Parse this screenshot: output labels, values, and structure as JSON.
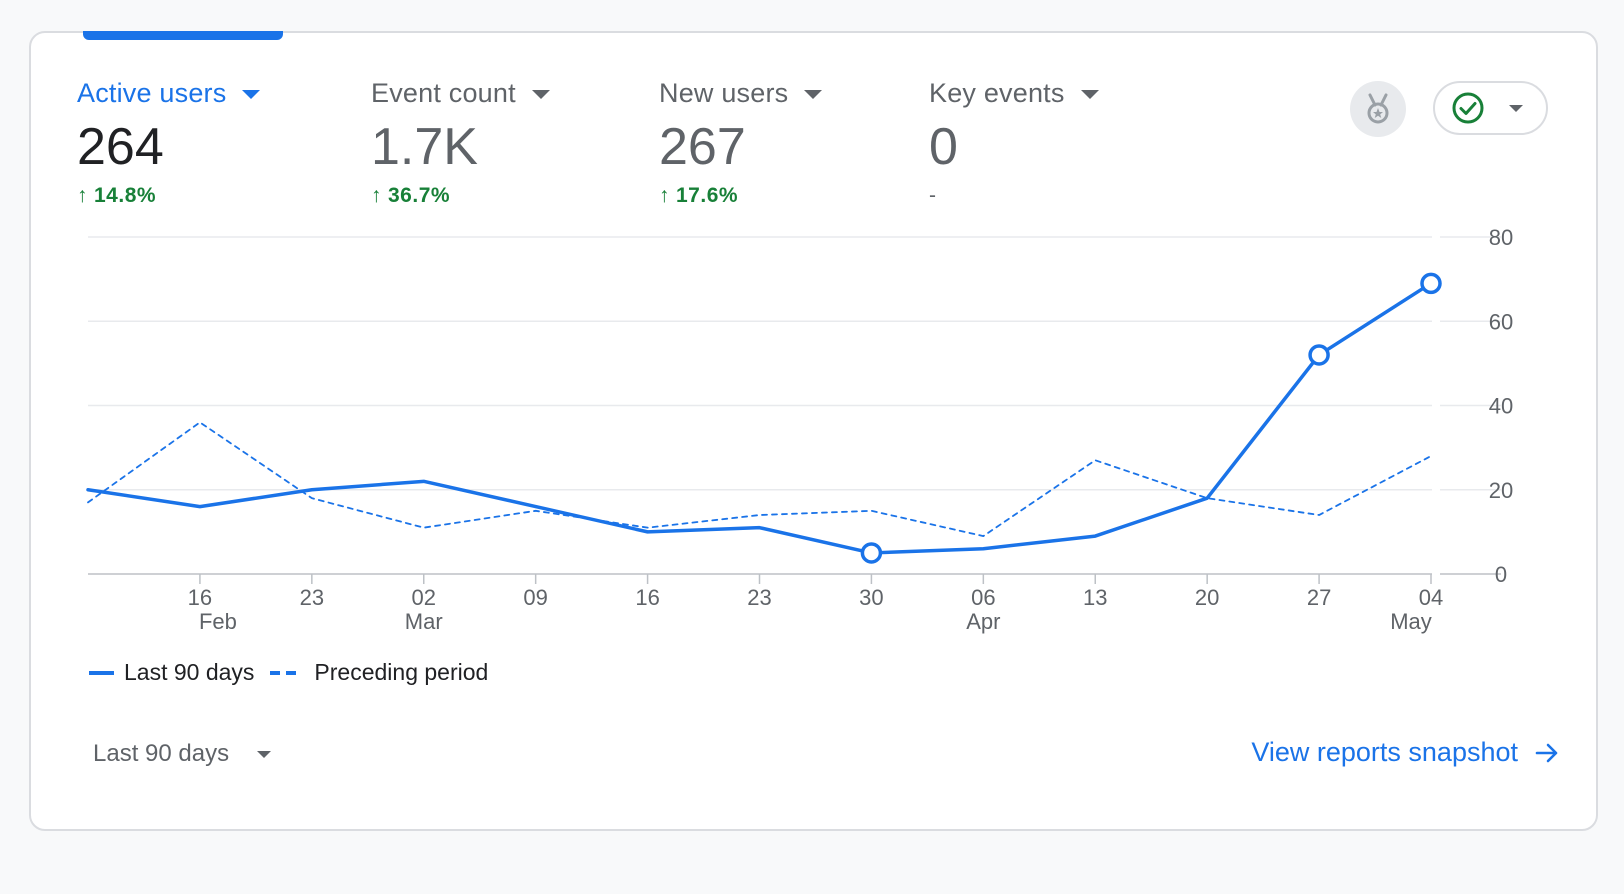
{
  "metrics": [
    {
      "label": "Active users",
      "value": "264",
      "change": "14.8%",
      "direction": "up"
    },
    {
      "label": "Event count",
      "value": "1.7K",
      "change": "36.7%",
      "direction": "up"
    },
    {
      "label": "New users",
      "value": "267",
      "change": "17.6%",
      "direction": "up"
    },
    {
      "label": "Key events",
      "value": "0",
      "change": "-",
      "direction": "none"
    }
  ],
  "icons": {
    "badge": "medal-icon",
    "status": "check-circle-icon",
    "dropdown": "chevron-down-icon",
    "link": "arrow-right-icon"
  },
  "colors": {
    "accent": "#1a73e8",
    "positive": "#188038",
    "status": "#188038"
  },
  "chart_data": {
    "type": "line",
    "x_ticks": [
      {
        "day": "16",
        "month": "Feb"
      },
      {
        "day": "23",
        "month": ""
      },
      {
        "day": "02",
        "month": "Mar"
      },
      {
        "day": "09",
        "month": ""
      },
      {
        "day": "16",
        "month": ""
      },
      {
        "day": "23",
        "month": ""
      },
      {
        "day": "30",
        "month": ""
      },
      {
        "day": "06",
        "month": "Apr"
      },
      {
        "day": "13",
        "month": ""
      },
      {
        "day": "20",
        "month": ""
      },
      {
        "day": "27",
        "month": ""
      },
      {
        "day": "04",
        "month": "May"
      }
    ],
    "x": [
      "2025-02-09",
      "2025-02-16",
      "2025-02-23",
      "2025-03-02",
      "2025-03-09",
      "2025-03-16",
      "2025-03-23",
      "2025-03-30",
      "2025-04-06",
      "2025-04-13",
      "2025-04-20",
      "2025-04-27",
      "2025-05-04"
    ],
    "series": [
      {
        "name": "Last 90 days",
        "style": "solid",
        "values": [
          20,
          16,
          20,
          22,
          16,
          10,
          11,
          5,
          6,
          9,
          18,
          52,
          69
        ],
        "markers": [
          7,
          11,
          12
        ]
      },
      {
        "name": "Preceding period",
        "style": "dashed",
        "values": [
          17,
          36,
          18,
          11,
          15,
          11,
          14,
          15,
          9,
          27,
          18,
          14,
          28
        ],
        "markers": []
      }
    ],
    "yticks": [
      0,
      20,
      40,
      60,
      80
    ],
    "ylim": [
      0,
      80
    ],
    "grid": true,
    "legend_position": "bottom-left"
  },
  "footer": {
    "range_label": "Last 90 days",
    "link_label": "View reports snapshot"
  }
}
